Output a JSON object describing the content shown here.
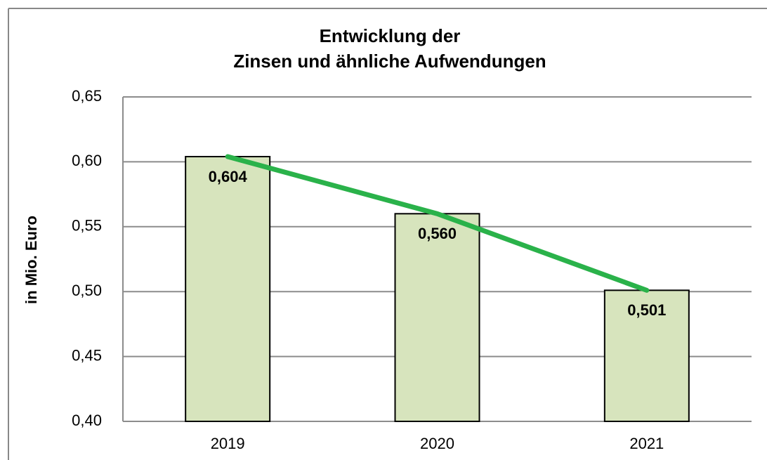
{
  "chart_data": {
    "type": "bar",
    "title": [
      "Entwicklung der",
      "Zinsen und ähnliche Aufwendungen"
    ],
    "y_axis_label": "in Mio. Euro",
    "categories": [
      "2019",
      "2020",
      "2021"
    ],
    "values": [
      0.604,
      0.56,
      0.501
    ],
    "value_labels": [
      "0,604",
      "0,560",
      "0,501"
    ],
    "color": "#d7e4bd",
    "line_color": "#2ab24a",
    "ylim": [
      0.4,
      0.65
    ],
    "yticks": [
      {
        "value": 0.4,
        "label": "0,40"
      },
      {
        "value": 0.45,
        "label": "0,45"
      },
      {
        "value": 0.5,
        "label": "0,50"
      },
      {
        "value": 0.55,
        "label": "0,55"
      },
      {
        "value": 0.6,
        "label": "0,60"
      },
      {
        "value": 0.65,
        "label": "0,65"
      }
    ],
    "grid": true
  }
}
